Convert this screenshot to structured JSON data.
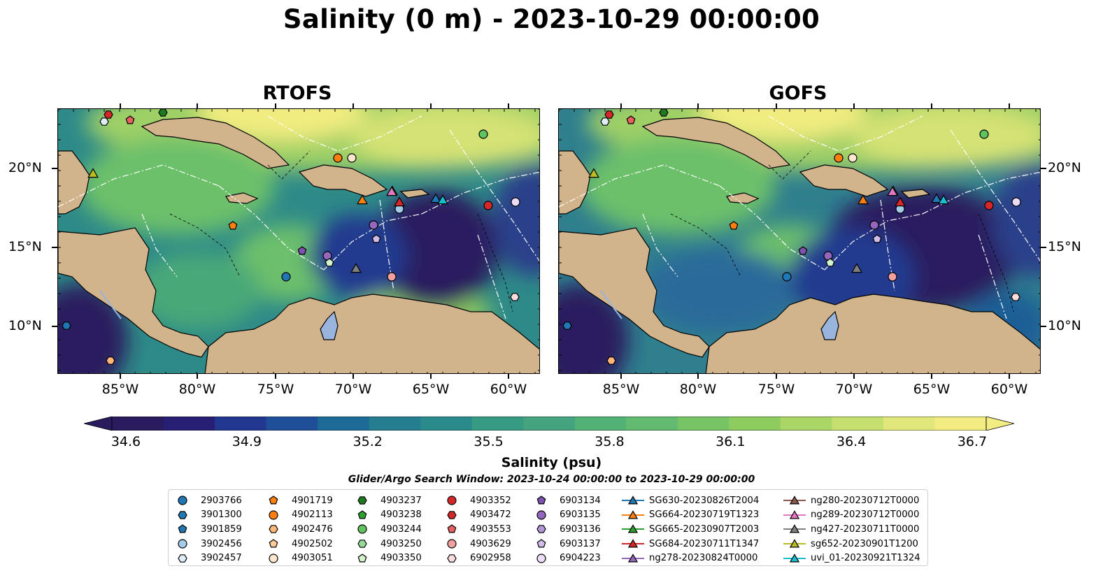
{
  "title": "Salinity (0 m) - 2023-10-29 00:00:00",
  "panels": [
    {
      "title": "RTOFS"
    },
    {
      "title": "GOFS"
    }
  ],
  "axes": {
    "x_ticks": [
      "85°W",
      "80°W",
      "75°W",
      "70°W",
      "65°W",
      "60°W"
    ],
    "y_ticks": [
      "20°N",
      "15°N",
      "10°N"
    ]
  },
  "colorbar": {
    "label": "Salinity (psu)",
    "ticks": [
      "34.6",
      "34.9",
      "35.2",
      "35.5",
      "35.8",
      "36.1",
      "36.4",
      "36.7"
    ],
    "range": [
      34.6,
      36.7
    ],
    "colors": [
      "#2a1a5e",
      "#22378f",
      "#1d6a96",
      "#2b8a8c",
      "#45a47f",
      "#62bb6e",
      "#8fcc5f",
      "#c6e070",
      "#f3ec82"
    ]
  },
  "search_window": "Glider/Argo Search Window: 2023-10-24 00:00:00 to 2023-10-29 00:00:00",
  "legend": {
    "columns": [
      [
        {
          "label": "2903766",
          "marker": "circle",
          "color": "#1f77b4"
        },
        {
          "label": "3901300",
          "marker": "hexagon",
          "color": "#1f77b4"
        },
        {
          "label": "3901859",
          "marker": "pentagon",
          "color": "#1f77b4"
        },
        {
          "label": "3902456",
          "marker": "circle",
          "color": "#a4cbe8"
        },
        {
          "label": "3902457",
          "marker": "hexagon",
          "color": "#ddecf7"
        }
      ],
      [
        {
          "label": "4901719",
          "marker": "pentagon",
          "color": "#ff7f0e"
        },
        {
          "label": "4902113",
          "marker": "circle",
          "color": "#ff7f0e"
        },
        {
          "label": "4902476",
          "marker": "hexagon",
          "color": "#ffb777"
        },
        {
          "label": "4902502",
          "marker": "pentagon",
          "color": "#ffcc99"
        },
        {
          "label": "4903051",
          "marker": "circle",
          "color": "#ffe7cf"
        }
      ],
      [
        {
          "label": "4903237",
          "marker": "hexagon",
          "color": "#1e7a1e"
        },
        {
          "label": "4903238",
          "marker": "pentagon",
          "color": "#2ca02c"
        },
        {
          "label": "4903244",
          "marker": "circle",
          "color": "#5fc45f"
        },
        {
          "label": "4903250",
          "marker": "hexagon",
          "color": "#97d997"
        },
        {
          "label": "4903350",
          "marker": "pentagon",
          "color": "#d4f2cc"
        }
      ],
      [
        {
          "label": "4903352",
          "marker": "circle",
          "color": "#d62728"
        },
        {
          "label": "4903472",
          "marker": "hexagon",
          "color": "#d62728"
        },
        {
          "label": "4903553",
          "marker": "pentagon",
          "color": "#e8605f"
        },
        {
          "label": "4903629",
          "marker": "circle",
          "color": "#f2a09f"
        },
        {
          "label": "6902958",
          "marker": "hexagon",
          "color": "#fadcdc"
        }
      ],
      [
        {
          "label": "6903134",
          "marker": "pentagon",
          "color": "#7d52b0"
        },
        {
          "label": "6903135",
          "marker": "circle",
          "color": "#9467bd"
        },
        {
          "label": "6903136",
          "marker": "hexagon",
          "color": "#b497d6"
        },
        {
          "label": "6903137",
          "marker": "pentagon",
          "color": "#d2bde9"
        },
        {
          "label": "6904223",
          "marker": "circle",
          "color": "#ecdcf7"
        }
      ],
      [
        {
          "label": "SG630-20230826T2004",
          "marker": "triangle",
          "color": "#1f77b4"
        },
        {
          "label": "SG664-20230719T1323",
          "marker": "triangle",
          "color": "#ff7f0e"
        },
        {
          "label": "SG665-20230907T2003",
          "marker": "triangle",
          "color": "#2ca02c"
        },
        {
          "label": "SG684-20230711T1347",
          "marker": "triangle",
          "color": "#d62728"
        },
        {
          "label": "ng278-20230824T0000",
          "marker": "triangle",
          "color": "#9467bd"
        }
      ],
      [
        {
          "label": "ng280-20230712T0000",
          "marker": "triangle",
          "color": "#8c564b"
        },
        {
          "label": "ng289-20230712T0000",
          "marker": "triangle",
          "color": "#e377c2"
        },
        {
          "label": "ng427-20230711T0000",
          "marker": "triangle",
          "color": "#7f7f7f"
        },
        {
          "label": "sg652-20230901T1200",
          "marker": "triangle",
          "color": "#bcbd22"
        },
        {
          "label": "uvi_01-20230921T1324",
          "marker": "triangle",
          "color": "#17becf"
        }
      ]
    ]
  }
}
